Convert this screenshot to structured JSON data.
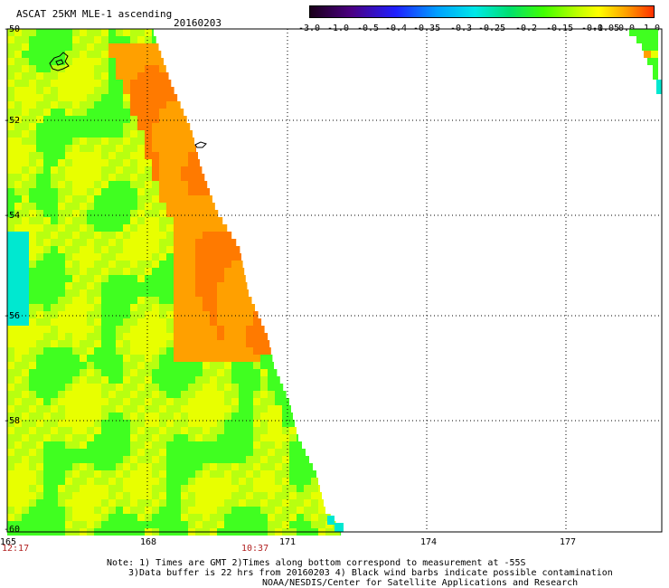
{
  "title": "ASCAT 25KM MLE-1 ascending",
  "date": "20160203",
  "colorbar": {
    "labels": [
      "-3.0",
      "-1.0",
      "-0.5",
      "-0.4",
      "-0.35",
      "-0.3",
      "-0.25",
      "-0.2",
      "-0.15",
      "-0.1",
      "-0.05",
      "0.0",
      "1.0"
    ]
  },
  "axes": {
    "lat_labels": [
      "-50",
      "-52",
      "-54",
      "-56",
      "-58",
      "-60"
    ],
    "lon_labels": [
      "165",
      "168",
      "171",
      "174",
      "177"
    ]
  },
  "times": [
    "12:17",
    "10:37"
  ],
  "notes": [
    "Note: 1) Times are GMT 2)Times along bottom correspond to measurement at -55S",
    "3)Data buffer is 22 hrs from 20160203 4) Black wind barbs indicate possible contamination",
    "NOAA/NESDIS/Center for Satellite Applications and Research"
  ],
  "colors": {
    "cyan": "#00e8d0",
    "green": "#40ff20",
    "yellow": "#e8ff00",
    "orange": "#ffa000",
    "dark_orange": "#ff7a00"
  }
}
